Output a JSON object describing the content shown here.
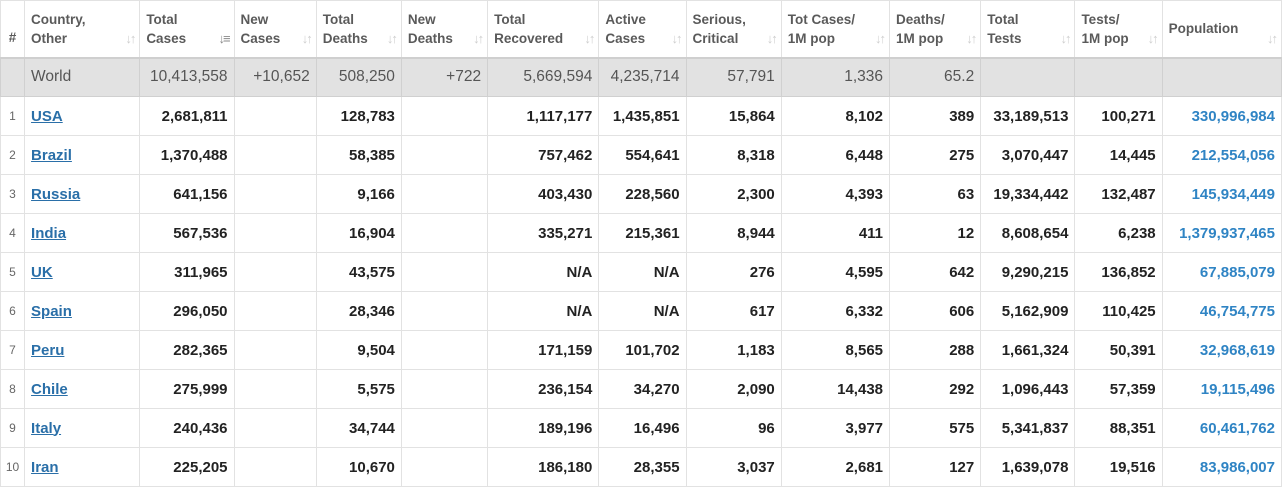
{
  "headers": [
    {
      "label": "#",
      "sort": false,
      "active": false
    },
    {
      "label": "Country, Other",
      "sort": true,
      "active": false
    },
    {
      "label": "Total Cases",
      "sort": true,
      "active": true
    },
    {
      "label": "New Cases",
      "sort": true,
      "active": false
    },
    {
      "label": "Total Deaths",
      "sort": true,
      "active": false
    },
    {
      "label": "New Deaths",
      "sort": true,
      "active": false
    },
    {
      "label": "Total Recovered",
      "sort": true,
      "active": false
    },
    {
      "label": "Active Cases",
      "sort": true,
      "active": false
    },
    {
      "label": "Serious, Critical",
      "sort": true,
      "active": false
    },
    {
      "label": "Tot Cases/ 1M pop",
      "sort": true,
      "active": false
    },
    {
      "label": "Deaths/ 1M pop",
      "sort": true,
      "active": false
    },
    {
      "label": "Total Tests",
      "sort": true,
      "active": false
    },
    {
      "label": "Tests/ 1M pop",
      "sort": true,
      "active": false
    },
    {
      "label": "Population",
      "sort": true,
      "active": false
    }
  ],
  "header_lines": [
    [
      "#"
    ],
    [
      "Country,",
      "Other"
    ],
    [
      "Total",
      "Cases"
    ],
    [
      "New",
      "Cases"
    ],
    [
      "Total",
      "Deaths"
    ],
    [
      "New",
      "Deaths"
    ],
    [
      "Total",
      "Recovered"
    ],
    [
      "Active",
      "Cases"
    ],
    [
      "Serious,",
      "Critical"
    ],
    [
      "Tot Cases/",
      "1M pop"
    ],
    [
      "Deaths/",
      "1M pop"
    ],
    [
      "Total",
      "Tests"
    ],
    [
      "Tests/",
      "1M pop"
    ],
    [
      "Population"
    ]
  ],
  "sort_icon": "sort-arrows-icon",
  "world": {
    "rank": "",
    "country": "World",
    "total_cases": "10,413,558",
    "new_cases": "+10,652",
    "total_deaths": "508,250",
    "new_deaths": "+722",
    "total_recovered": "5,669,594",
    "active_cases": "4,235,714",
    "serious": "57,791",
    "cases_per_m": "1,336",
    "deaths_per_m": "65.2",
    "total_tests": "",
    "tests_per_m": "",
    "population": ""
  },
  "rows": [
    {
      "rank": "1",
      "country": "USA",
      "total_cases": "2,681,811",
      "new_cases": "",
      "total_deaths": "128,783",
      "new_deaths": "",
      "total_recovered": "1,117,177",
      "active_cases": "1,435,851",
      "serious": "15,864",
      "cases_per_m": "8,102",
      "deaths_per_m": "389",
      "total_tests": "33,189,513",
      "tests_per_m": "100,271",
      "population": "330,996,984"
    },
    {
      "rank": "2",
      "country": "Brazil",
      "total_cases": "1,370,488",
      "new_cases": "",
      "total_deaths": "58,385",
      "new_deaths": "",
      "total_recovered": "757,462",
      "active_cases": "554,641",
      "serious": "8,318",
      "cases_per_m": "6,448",
      "deaths_per_m": "275",
      "total_tests": "3,070,447",
      "tests_per_m": "14,445",
      "population": "212,554,056"
    },
    {
      "rank": "3",
      "country": "Russia",
      "total_cases": "641,156",
      "new_cases": "",
      "total_deaths": "9,166",
      "new_deaths": "",
      "total_recovered": "403,430",
      "active_cases": "228,560",
      "serious": "2,300",
      "cases_per_m": "4,393",
      "deaths_per_m": "63",
      "total_tests": "19,334,442",
      "tests_per_m": "132,487",
      "population": "145,934,449"
    },
    {
      "rank": "4",
      "country": "India",
      "total_cases": "567,536",
      "new_cases": "",
      "total_deaths": "16,904",
      "new_deaths": "",
      "total_recovered": "335,271",
      "active_cases": "215,361",
      "serious": "8,944",
      "cases_per_m": "411",
      "deaths_per_m": "12",
      "total_tests": "8,608,654",
      "tests_per_m": "6,238",
      "population": "1,379,937,465"
    },
    {
      "rank": "5",
      "country": "UK",
      "total_cases": "311,965",
      "new_cases": "",
      "total_deaths": "43,575",
      "new_deaths": "",
      "total_recovered": "N/A",
      "active_cases": "N/A",
      "serious": "276",
      "cases_per_m": "4,595",
      "deaths_per_m": "642",
      "total_tests": "9,290,215",
      "tests_per_m": "136,852",
      "population": "67,885,079"
    },
    {
      "rank": "6",
      "country": "Spain",
      "total_cases": "296,050",
      "new_cases": "",
      "total_deaths": "28,346",
      "new_deaths": "",
      "total_recovered": "N/A",
      "active_cases": "N/A",
      "serious": "617",
      "cases_per_m": "6,332",
      "deaths_per_m": "606",
      "total_tests": "5,162,909",
      "tests_per_m": "110,425",
      "population": "46,754,775"
    },
    {
      "rank": "7",
      "country": "Peru",
      "total_cases": "282,365",
      "new_cases": "",
      "total_deaths": "9,504",
      "new_deaths": "",
      "total_recovered": "171,159",
      "active_cases": "101,702",
      "serious": "1,183",
      "cases_per_m": "8,565",
      "deaths_per_m": "288",
      "total_tests": "1,661,324",
      "tests_per_m": "50,391",
      "population": "32,968,619"
    },
    {
      "rank": "8",
      "country": "Chile",
      "total_cases": "275,999",
      "new_cases": "",
      "total_deaths": "5,575",
      "new_deaths": "",
      "total_recovered": "236,154",
      "active_cases": "34,270",
      "serious": "2,090",
      "cases_per_m": "14,438",
      "deaths_per_m": "292",
      "total_tests": "1,096,443",
      "tests_per_m": "57,359",
      "population": "19,115,496"
    },
    {
      "rank": "9",
      "country": "Italy",
      "total_cases": "240,436",
      "new_cases": "",
      "total_deaths": "34,744",
      "new_deaths": "",
      "total_recovered": "189,196",
      "active_cases": "16,496",
      "serious": "96",
      "cases_per_m": "3,977",
      "deaths_per_m": "575",
      "total_tests": "5,341,837",
      "tests_per_m": "88,351",
      "population": "60,461,762"
    },
    {
      "rank": "10",
      "country": "Iran",
      "total_cases": "225,205",
      "new_cases": "",
      "total_deaths": "10,670",
      "new_deaths": "",
      "total_recovered": "186,180",
      "active_cases": "28,355",
      "serious": "3,037",
      "cases_per_m": "2,681",
      "deaths_per_m": "127",
      "total_tests": "1,639,078",
      "tests_per_m": "19,516",
      "population": "83,986,007"
    }
  ],
  "colors": {
    "link": "#2a6fa8",
    "population": "#2f84c4",
    "world_row_bg": "#e2e2e2"
  }
}
